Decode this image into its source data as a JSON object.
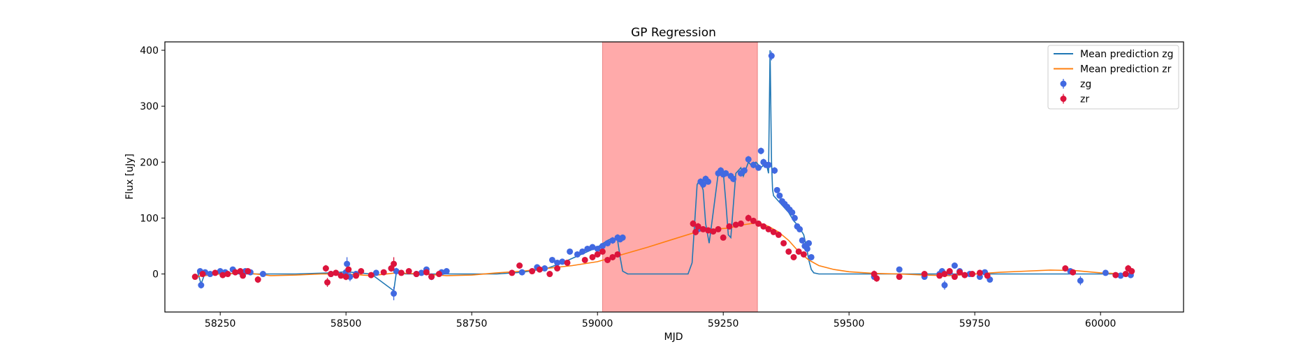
{
  "chart_data": {
    "type": "scatter",
    "title": "GP Regression",
    "xlabel": "MJD",
    "ylabel": "Flux [uJy]",
    "xlim": [
      58140,
      60165
    ],
    "ylim": [
      -68,
      415
    ],
    "xticks": [
      58250,
      58500,
      58750,
      59000,
      59250,
      59500,
      59750,
      60000
    ],
    "yticks": [
      0,
      100,
      200,
      300,
      400
    ],
    "grid": false,
    "legend_position": "top-right",
    "shaded_region": {
      "x": [
        59010,
        59318
      ],
      "color": "#ff5555",
      "opacity": 0.5
    },
    "legend": [
      {
        "label": "Mean prediction zg",
        "kind": "line",
        "color": "#1f77b4"
      },
      {
        "label": "Mean prediction zr",
        "kind": "line",
        "color": "#ff7f0e"
      },
      {
        "label": "zg",
        "kind": "errorbar",
        "color": "#4169e1"
      },
      {
        "label": "zr",
        "kind": "errorbar",
        "color": "#dc143c"
      }
    ],
    "series": [
      {
        "name": "Mean prediction zg",
        "kind": "line",
        "color": "#1f77b4",
        "x": [
          58205,
          58212,
          58220,
          58300,
          58330,
          58400,
          58470,
          58500,
          58550,
          58595,
          58600,
          58620,
          58650,
          58700,
          58800,
          58850,
          58900,
          58930,
          58960,
          58980,
          59000,
          59020,
          59030,
          59040,
          59045,
          59050,
          59060,
          59180,
          59188,
          59193,
          59198,
          59203,
          59210,
          59215,
          59222,
          59230,
          59240,
          59250,
          59255,
          59260,
          59265,
          59275,
          59285,
          59290,
          59300,
          59305,
          59315,
          59325,
          59335,
          59340,
          59343,
          59346,
          59348,
          59350,
          59360,
          59370,
          59380,
          59390,
          59400,
          59410,
          59415,
          59420,
          59425,
          59430,
          59440,
          59460,
          59500,
          59600,
          59700,
          59800,
          59950,
          60000,
          60060
        ],
        "y": [
          4,
          -18,
          2,
          0,
          0,
          0,
          2,
          4,
          0,
          -30,
          2,
          0,
          0,
          0,
          0,
          3,
          10,
          20,
          32,
          40,
          48,
          60,
          64,
          60,
          30,
          5,
          0,
          0,
          20,
          90,
          160,
          168,
          150,
          90,
          55,
          110,
          180,
          182,
          130,
          70,
          65,
          180,
          190,
          175,
          200,
          195,
          200,
          190,
          200,
          180,
          400,
          200,
          150,
          140,
          130,
          120,
          110,
          95,
          85,
          70,
          50,
          25,
          8,
          2,
          0,
          0,
          0,
          0,
          0,
          0,
          0,
          0,
          0
        ]
      },
      {
        "name": "Mean prediction zr",
        "kind": "line",
        "color": "#ff7f0e",
        "x": [
          58200,
          58250,
          58300,
          58350,
          58400,
          58450,
          58500,
          58550,
          58600,
          58650,
          58700,
          58750,
          58800,
          58850,
          58900,
          58950,
          59000,
          59050,
          59100,
          59150,
          59200,
          59230,
          59260,
          59290,
          59320,
          59340,
          59360,
          59380,
          59400,
          59420,
          59440,
          59470,
          59500,
          59550,
          59600,
          59650,
          59700,
          59750,
          59800,
          59850,
          59900,
          59950,
          60000,
          60050,
          60060
        ],
        "y": [
          -5,
          0,
          2,
          -3,
          -2,
          0,
          0,
          -3,
          2,
          0,
          -3,
          -2,
          2,
          5,
          10,
          15,
          22,
          35,
          48,
          62,
          76,
          80,
          82,
          88,
          92,
          85,
          75,
          60,
          40,
          25,
          15,
          8,
          4,
          1,
          0,
          -2,
          -3,
          0,
          3,
          5,
          7,
          6,
          2,
          0,
          0
        ]
      },
      {
        "name": "zg",
        "kind": "errorbar",
        "color": "#4169e1",
        "x": [
          58210,
          58212,
          58220,
          58230,
          58250,
          58260,
          58275,
          58290,
          58300,
          58310,
          58335,
          58470,
          58500,
          58502,
          58508,
          58520,
          58560,
          58590,
          58595,
          58600,
          58640,
          58650,
          58660,
          58670,
          58690,
          58700,
          58850,
          58880,
          58895,
          58910,
          58920,
          58930,
          58945,
          58960,
          58970,
          58980,
          58990,
          59000,
          59010,
          59020,
          59030,
          59040,
          59045,
          59050,
          59200,
          59205,
          59210,
          59215,
          59220,
          59240,
          59245,
          59250,
          59255,
          59265,
          59270,
          59285,
          59292,
          59300,
          59310,
          59320,
          59325,
          59330,
          59335,
          59340,
          59346,
          59352,
          59357,
          59362,
          59367,
          59372,
          59377,
          59382,
          59387,
          59392,
          59397,
          59402,
          59407,
          59412,
          59417,
          59420,
          59425,
          59550,
          59600,
          59650,
          59680,
          59685,
          59690,
          59700,
          59710,
          59720,
          59740,
          59760,
          59770,
          59780,
          59940,
          59960,
          60010,
          60040,
          60060
        ],
        "y": [
          5,
          -20,
          3,
          0,
          5,
          3,
          8,
          4,
          5,
          3,
          0,
          0,
          3,
          18,
          -5,
          0,
          2,
          10,
          -35,
          5,
          0,
          2,
          8,
          -5,
          3,
          5,
          3,
          12,
          10,
          25,
          20,
          22,
          40,
          35,
          40,
          45,
          48,
          45,
          50,
          55,
          60,
          65,
          62,
          65,
          80,
          165,
          160,
          170,
          165,
          180,
          185,
          178,
          180,
          175,
          170,
          180,
          185,
          205,
          195,
          190,
          220,
          200,
          195,
          195,
          390,
          185,
          150,
          140,
          130,
          125,
          120,
          115,
          110,
          100,
          85,
          80,
          60,
          50,
          45,
          55,
          30,
          -5,
          8,
          -5,
          0,
          5,
          -20,
          3,
          15,
          5,
          0,
          -5,
          3,
          -10,
          5,
          -12,
          2,
          -3,
          -2
        ],
        "yerr": [
          4,
          6,
          4,
          3,
          4,
          3,
          4,
          3,
          3,
          3,
          4,
          5,
          4,
          12,
          8,
          5,
          4,
          5,
          12,
          6,
          4,
          4,
          5,
          6,
          4,
          4,
          4,
          5,
          4,
          5,
          4,
          5,
          5,
          4,
          4,
          5,
          4,
          4,
          5,
          5,
          6,
          6,
          5,
          5,
          5,
          6,
          6,
          6,
          5,
          6,
          6,
          5,
          5,
          6,
          6,
          6,
          5,
          6,
          6,
          5,
          6,
          6,
          5,
          6,
          8,
          6,
          5,
          5,
          5,
          5,
          5,
          5,
          5,
          5,
          5,
          5,
          5,
          5,
          5,
          5,
          5,
          4,
          5,
          4,
          5,
          4,
          8,
          4,
          5,
          4,
          4,
          5,
          4,
          5,
          4,
          8,
          4,
          4,
          4
        ]
      },
      {
        "name": "zr",
        "kind": "errorbar",
        "color": "#dc143c",
        "x": [
          58200,
          58215,
          58240,
          58255,
          58265,
          58280,
          58290,
          58295,
          58305,
          58325,
          58460,
          58463,
          58470,
          58480,
          58490,
          58500,
          58505,
          58520,
          58530,
          58550,
          58575,
          58590,
          58595,
          58610,
          58625,
          58640,
          58660,
          58670,
          58685,
          58830,
          58845,
          58870,
          58885,
          58905,
          58920,
          58940,
          58975,
          58990,
          59000,
          59010,
          59020,
          59030,
          59040,
          59190,
          59195,
          59200,
          59210,
          59220,
          59230,
          59240,
          59250,
          59262,
          59275,
          59285,
          59300,
          59310,
          59320,
          59330,
          59340,
          59350,
          59360,
          59370,
          59380,
          59390,
          59400,
          59410,
          59550,
          59555,
          59600,
          59650,
          59680,
          59690,
          59700,
          59710,
          59720,
          59730,
          59745,
          59760,
          59775,
          59930,
          59945,
          60030,
          60050,
          60055,
          60062
        ],
        "y": [
          -5,
          0,
          2,
          -2,
          0,
          3,
          5,
          -3,
          5,
          -10,
          10,
          -15,
          0,
          2,
          -3,
          -5,
          8,
          -3,
          5,
          -2,
          3,
          10,
          18,
          2,
          5,
          0,
          3,
          -5,
          0,
          2,
          15,
          5,
          8,
          0,
          10,
          20,
          25,
          30,
          35,
          40,
          25,
          30,
          35,
          90,
          75,
          85,
          80,
          78,
          76,
          80,
          65,
          85,
          88,
          90,
          100,
          95,
          90,
          85,
          80,
          75,
          70,
          55,
          40,
          30,
          40,
          35,
          0,
          -8,
          -5,
          0,
          -3,
          0,
          5,
          -5,
          3,
          -2,
          0,
          2,
          -3,
          10,
          3,
          -2,
          0,
          10,
          5
        ],
        "yerr": [
          4,
          5,
          3,
          4,
          4,
          4,
          4,
          5,
          4,
          6,
          6,
          8,
          5,
          4,
          5,
          6,
          5,
          4,
          5,
          4,
          4,
          6,
          12,
          4,
          5,
          4,
          4,
          5,
          4,
          4,
          5,
          4,
          4,
          4,
          5,
          4,
          5,
          5,
          4,
          5,
          5,
          5,
          4,
          6,
          6,
          6,
          5,
          5,
          5,
          5,
          5,
          5,
          5,
          5,
          6,
          5,
          5,
          5,
          5,
          5,
          5,
          5,
          5,
          5,
          5,
          5,
          6,
          6,
          5,
          5,
          5,
          5,
          5,
          5,
          5,
          5,
          5,
          5,
          5,
          5,
          5,
          5,
          5,
          6,
          5
        ]
      }
    ]
  }
}
